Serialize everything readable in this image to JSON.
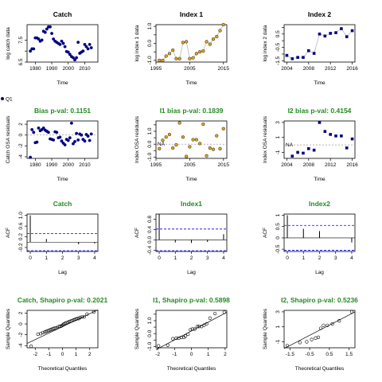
{
  "legend": {
    "label": "Q1"
  },
  "colors": {
    "black_title": "#000000",
    "green_title": "#228B22",
    "navy": "#000080",
    "gold": "#DAA520",
    "blue": "#0000FF",
    "grid_line": "#b0b0b0"
  },
  "chart_data": [
    {
      "type": "scatter",
      "title": "Catch",
      "title_color": "black",
      "xlabel": "Time",
      "ylabel": "log catch data",
      "xlim": [
        1975,
        2018
      ],
      "ylim": [
        6.5,
        8.2
      ],
      "xticks": [
        1980,
        1990,
        2000,
        2010
      ],
      "yticks": [
        6.5,
        7.0,
        7.5
      ],
      "yticklabels": [
        "6.5",
        "",
        "7.5"
      ],
      "point_style": "navy",
      "connect": false,
      "x": [
        1977,
        1978,
        1979,
        1980,
        1981,
        1982,
        1983,
        1984,
        1985,
        1986,
        1987,
        1988,
        1989,
        1990,
        1991,
        1992,
        1993,
        1994,
        1995,
        1996,
        1997,
        1998,
        1999,
        2000,
        2001,
        2002,
        2003,
        2004,
        2005,
        2006,
        2007,
        2008,
        2009,
        2010,
        2011,
        2012,
        2013,
        2014
      ],
      "y": [
        7.0,
        7.1,
        7.1,
        7.6,
        7.6,
        7.55,
        7.45,
        7.5,
        7.9,
        7.85,
        8.0,
        8.1,
        8.1,
        7.8,
        7.55,
        7.45,
        7.4,
        7.35,
        7.3,
        7.45,
        7.35,
        7.2,
        6.98,
        6.95,
        6.85,
        6.75,
        6.7,
        6.6,
        6.7,
        7.4,
        6.9,
        6.95,
        7.0,
        7.3,
        7.2,
        7.1,
        7.3,
        7.15
      ]
    },
    {
      "type": "scatter",
      "title": "Index 1",
      "title_color": "black",
      "xlabel": "Time",
      "ylabel": "log index 1 data",
      "xlim": [
        1995,
        2016
      ],
      "ylim": [
        -1.1,
        1.1
      ],
      "xticks": [
        1995,
        2005,
        2015
      ],
      "yticks": [
        -1.0,
        -0.5,
        0.0,
        0.5,
        1.0
      ],
      "yticklabels": [
        "-1.0",
        "",
        "0.0",
        "",
        "1.0"
      ],
      "point_style": "gold",
      "connect": true,
      "x": [
        1996,
        1997,
        1998,
        1999,
        2000,
        2001,
        2002,
        2003,
        2004,
        2005,
        2006,
        2007,
        2008,
        2009,
        2010,
        2011,
        2012,
        2013,
        2014,
        2015
      ],
      "y": [
        -1.0,
        -1.0,
        -0.75,
        -0.6,
        -0.4,
        -0.9,
        -0.9,
        0.05,
        0.1,
        -0.9,
        -0.85,
        -0.6,
        -0.5,
        -0.45,
        0.1,
        -0.05,
        0.25,
        0.4,
        0.75,
        1.1
      ]
    },
    {
      "type": "scatter",
      "title": "Index 2",
      "title_color": "black",
      "xlabel": "Time",
      "ylabel": "log index 2 data",
      "xlim": [
        2003.5,
        2016.5
      ],
      "ylim": [
        -1.6,
        1.2
      ],
      "xticks": [
        2004,
        2008,
        2012,
        2016
      ],
      "yticks": [
        -1.5,
        -1.0,
        -0.5,
        0.0,
        0.5,
        1.0
      ],
      "yticklabels": [
        "-1.5",
        "",
        "-0.5",
        "",
        "0.5",
        ""
      ],
      "point_style": "navy_square",
      "connect": true,
      "x": [
        2004,
        2005,
        2006,
        2007,
        2008,
        2009,
        2010,
        2011,
        2012,
        2013,
        2014,
        2015,
        2016
      ],
      "y": [
        -1.1,
        -1.35,
        -1.25,
        -1.25,
        -0.75,
        -0.95,
        0.5,
        0.35,
        0.55,
        0.6,
        0.9,
        0.3,
        0.75
      ]
    },
    {
      "type": "scatter",
      "title": "Bias p-val: 0.1151",
      "title_color": "green",
      "xlabel": "Time",
      "ylabel": "Catch OSA residuals",
      "xlim": [
        1975,
        2018
      ],
      "ylim": [
        -4.3,
        2.6
      ],
      "xticks": [
        1980,
        1990,
        2000,
        2010
      ],
      "yticks": [
        -4,
        -2,
        0,
        2
      ],
      "yticklabels": [
        "-4",
        "-2",
        "0",
        "2"
      ],
      "point_style": "navy",
      "zero_line": true,
      "x": [
        1977,
        1978,
        1979,
        1980,
        1981,
        1982,
        1983,
        1984,
        1985,
        1986,
        1987,
        1988,
        1989,
        1990,
        1991,
        1992,
        1993,
        1994,
        1995,
        1996,
        1997,
        1998,
        1999,
        2000,
        2001,
        2002,
        2003,
        2004,
        2005,
        2006,
        2007,
        2008,
        2009,
        2010,
        2011,
        2012,
        2013,
        2014
      ],
      "y": [
        -4.1,
        1.0,
        0.5,
        -1.4,
        -1.3,
        1.3,
        0.8,
        1.0,
        1.3,
        0.9,
        0.7,
        0.5,
        -0.7,
        -0.8,
        -0.9,
        0.6,
        0.5,
        -0.5,
        -0.4,
        -1.1,
        -1.5,
        -1.8,
        -0.8,
        -1.0,
        -0.5,
        2.2,
        -1.6,
        -1.2,
        0.3,
        -0.9,
        0.2,
        0.0,
        -0.8,
        -1.1,
        0.1,
        -0.2,
        -1.0,
        0.2
      ]
    },
    {
      "type": "scatter",
      "title": "I1 bias p-val: 0.1839",
      "title_color": "green",
      "xlabel": "Time",
      "ylabel": "Index OSA residuals",
      "xlim": [
        1995,
        2016
      ],
      "ylim": [
        -1.1,
        1.8
      ],
      "xticks": [
        1995,
        2005,
        2015
      ],
      "yticks": [
        -1.0,
        -0.5,
        0.0,
        0.5,
        1.0,
        1.5
      ],
      "yticklabels": [
        "-1.0",
        "",
        "0.0",
        "",
        "1.0",
        ""
      ],
      "point_style": "gold",
      "zero_line": true,
      "na_label": "NA",
      "x": [
        1996,
        1997,
        1998,
        1999,
        2000,
        2001,
        2002,
        2003,
        2004,
        2005,
        2006,
        2007,
        2008,
        2009,
        2010,
        2011,
        2012,
        2013,
        2014,
        2015
      ],
      "y": [
        -0.35,
        0.3,
        0.55,
        0.75,
        -0.3,
        -0.05,
        1.65,
        0.55,
        -0.95,
        -0.2,
        0.35,
        0.35,
        0.05,
        1.55,
        -0.9,
        -0.3,
        -0.4,
        0.65,
        -0.35,
        1.2
      ]
    },
    {
      "type": "scatter",
      "title": "I2 bias p-val: 0.4154",
      "title_color": "green",
      "xlabel": "Time",
      "ylabel": "Index OSA residuals",
      "xlim": [
        2003.5,
        2016.5
      ],
      "ylim": [
        -1.8,
        3.2
      ],
      "xticks": [
        2004,
        2008,
        2012,
        2016
      ],
      "yticks": [
        -1,
        1,
        3
      ],
      "yticklabels": [
        "-1",
        "1",
        "3"
      ],
      "point_style": "navy_square",
      "zero_line": true,
      "na_label": "NA",
      "x": [
        2005,
        2006,
        2007,
        2008,
        2009,
        2010,
        2011,
        2012,
        2013,
        2014,
        2015,
        2016
      ],
      "y": [
        -1.5,
        -1.0,
        -1.1,
        -0.5,
        -0.7,
        3.0,
        1.8,
        1.4,
        1.2,
        1.2,
        -0.4,
        0.8
      ]
    },
    {
      "type": "bar",
      "title": "Catch",
      "title_color": "green",
      "xlabel": "Lag",
      "ylabel": "ACF",
      "xlim": [
        -0.2,
        4.2
      ],
      "ylim": [
        -0.35,
        1.05
      ],
      "xticks": [
        0,
        1,
        2,
        3,
        4
      ],
      "yticks": [
        -0.2,
        0.2,
        0.6,
        1.0
      ],
      "yticklabels": [
        "-0.2",
        "0.2",
        "0.6",
        "1.0"
      ],
      "lags": [
        0,
        1,
        2,
        3,
        4
      ],
      "values": [
        1.0,
        0.12,
        0.0,
        -0.08,
        -0.05
      ],
      "ci": [
        0.32,
        -0.32
      ]
    },
    {
      "type": "bar",
      "title": "Index1",
      "title_color": "green",
      "xlabel": "Lag",
      "ylabel": "ACF",
      "xlim": [
        -0.2,
        4.2
      ],
      "ylim": [
        -0.45,
        1.0
      ],
      "xticks": [
        0,
        1,
        2,
        3,
        4
      ],
      "yticks": [
        -0.4,
        0.0,
        0.4,
        0.8
      ],
      "yticklabels": [
        "-0.4",
        "0.0",
        "0.4",
        "0.8"
      ],
      "lags": [
        0,
        1,
        2,
        3,
        4
      ],
      "values": [
        1.0,
        -0.1,
        -0.12,
        -0.08,
        0.22
      ],
      "ci": [
        0.42,
        -0.42
      ]
    },
    {
      "type": "bar",
      "title": "Index2",
      "title_color": "green",
      "xlabel": "Lag",
      "ylabel": "ACF",
      "xlim": [
        -0.2,
        4.2
      ],
      "ylim": [
        -0.6,
        1.05
      ],
      "xticks": [
        0,
        1,
        2,
        3,
        4
      ],
      "yticks": [
        -0.5,
        0.0,
        0.5,
        1.0
      ],
      "yticklabels": [
        "-0.5",
        "0",
        "0.5",
        "1"
      ],
      "lags": [
        0,
        1,
        2,
        3,
        4
      ],
      "values": [
        1.0,
        0.4,
        0.3,
        0.0,
        -0.2
      ],
      "ci": [
        0.55,
        -0.55
      ]
    },
    {
      "type": "scatter",
      "title": "Catch, Shapiro p-val: 0.2021",
      "title_color": "green",
      "xlabel": "Theoretical Quantiles",
      "ylabel": "Sample Quantiles",
      "xlim": [
        -2.6,
        2.6
      ],
      "ylim": [
        -4.4,
        2.5
      ],
      "xticks": [
        -2,
        -1,
        0,
        1,
        2
      ],
      "yticks": [
        -4,
        -2,
        0,
        2
      ],
      "yticklabels": [
        "-4",
        "-2",
        "0",
        "2"
      ],
      "point_style": "hollow",
      "qq_line": [
        [
          -2.6,
          -3.6
        ],
        [
          2.6,
          2.6
        ]
      ],
      "x": [
        -2.3,
        -1.8,
        -1.6,
        -1.45,
        -1.3,
        -1.2,
        -1.1,
        -1.0,
        -0.9,
        -0.8,
        -0.7,
        -0.6,
        -0.5,
        -0.4,
        -0.3,
        -0.2,
        -0.1,
        -0.03,
        0.03,
        0.1,
        0.2,
        0.3,
        0.4,
        0.5,
        0.6,
        0.7,
        0.8,
        0.9,
        1.0,
        1.1,
        1.2,
        1.3,
        1.45,
        1.6,
        1.8,
        2.3
      ],
      "y": [
        -4.1,
        -1.9,
        -1.8,
        -1.6,
        -1.5,
        -1.4,
        -1.3,
        -1.2,
        -1.1,
        -1.0,
        -0.9,
        -0.8,
        -0.8,
        -0.7,
        -0.5,
        -0.45,
        -0.4,
        -0.3,
        -0.2,
        0.0,
        0.1,
        0.2,
        0.3,
        0.45,
        0.5,
        0.6,
        0.7,
        0.8,
        0.9,
        1.0,
        1.0,
        1.2,
        1.3,
        1.3,
        1.8,
        2.2
      ]
    },
    {
      "type": "scatter",
      "title": "I1, Shapiro p-val: 0.5898",
      "title_color": "green",
      "xlabel": "Theoretical Quantiles",
      "ylabel": "Sample Quantiles",
      "xlim": [
        -2.1,
        2.1
      ],
      "ylim": [
        -1.1,
        1.8
      ],
      "xticks": [
        -2,
        -1,
        0,
        1,
        2
      ],
      "yticks": [
        -1.0,
        -0.5,
        0.0,
        0.5,
        1.0,
        1.5
      ],
      "yticklabels": [
        "-1.0",
        "",
        "0.0",
        "",
        "1.0",
        ""
      ],
      "point_style": "hollow",
      "qq_line": [
        [
          -2.1,
          -1.25
        ],
        [
          2.1,
          1.65
        ]
      ],
      "x": [
        -1.95,
        -1.4,
        -1.1,
        -0.9,
        -0.75,
        -0.6,
        -0.45,
        -0.35,
        -0.2,
        -0.06,
        0.06,
        0.2,
        0.35,
        0.45,
        0.6,
        0.75,
        0.9,
        1.1,
        1.4,
        1.95
      ],
      "y": [
        -0.95,
        -0.9,
        -0.4,
        -0.35,
        -0.35,
        -0.3,
        -0.3,
        -0.2,
        -0.05,
        0.3,
        0.35,
        0.35,
        0.55,
        0.55,
        0.55,
        0.65,
        0.75,
        1.2,
        1.55,
        1.65
      ]
    },
    {
      "type": "scatter",
      "title": "I2, Shapiro p-val: 0.5236",
      "title_color": "green",
      "xlabel": "Theoretical Quantiles",
      "ylabel": "Sample Quantiles",
      "xlim": [
        -1.8,
        1.8
      ],
      "ylim": [
        -1.8,
        3.2
      ],
      "xticks": [
        -1.5,
        -0.5,
        0.5,
        1.5
      ],
      "yticks": [
        -1,
        1,
        3
      ],
      "yticklabels": [
        "-1",
        "1",
        "3"
      ],
      "point_style": "hollow",
      "qq_line": [
        [
          -1.8,
          -1.9
        ],
        [
          1.8,
          3.0
        ]
      ],
      "x": [
        -1.64,
        -1.0,
        -0.65,
        -0.4,
        -0.2,
        -0.06,
        0.06,
        0.2,
        0.4,
        0.65,
        1.0,
        1.64
      ],
      "y": [
        -1.5,
        -1.1,
        -1.0,
        -0.7,
        -0.5,
        -0.4,
        0.8,
        1.2,
        1.2,
        1.4,
        1.8,
        3.0
      ]
    }
  ]
}
